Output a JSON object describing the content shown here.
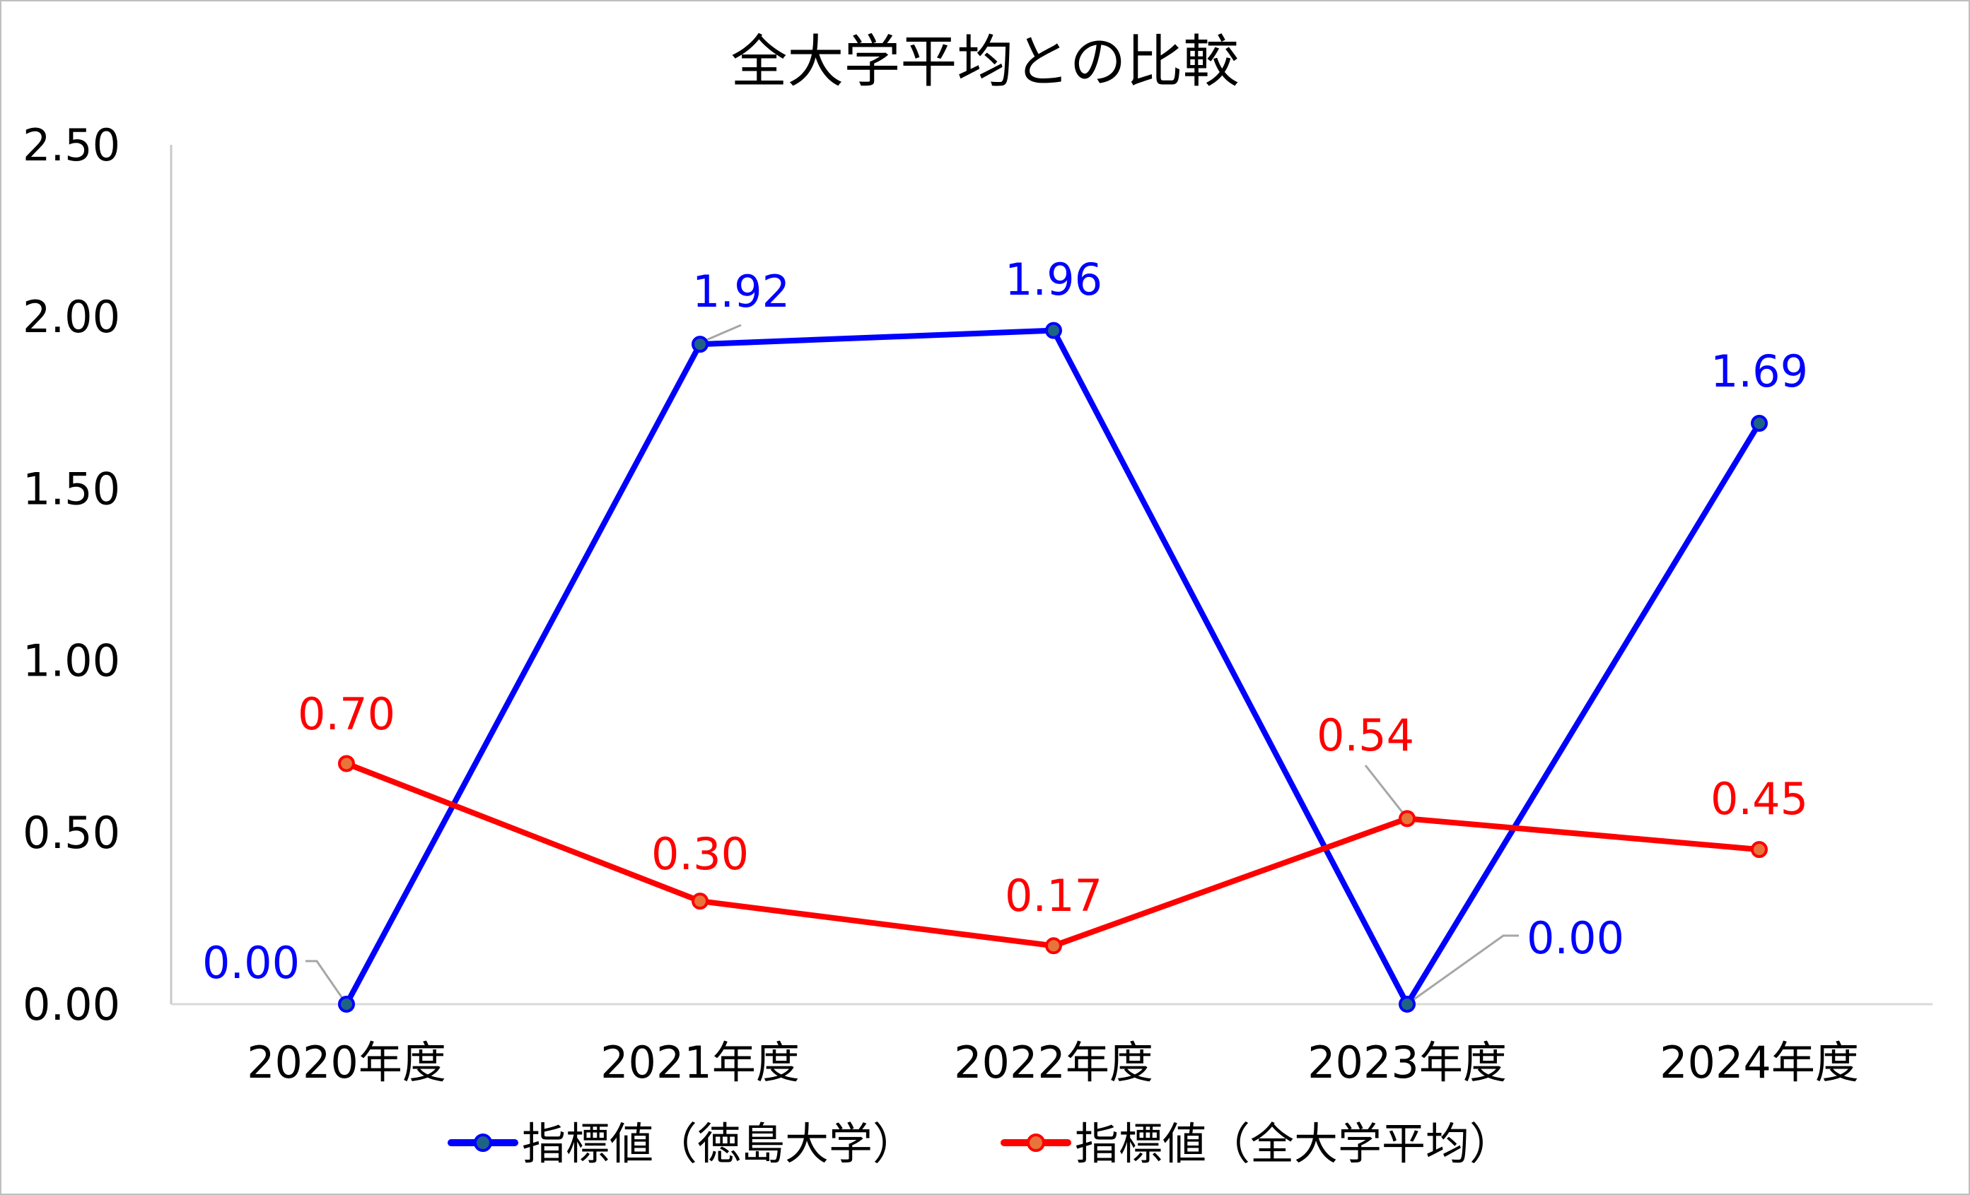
{
  "chart_data": {
    "type": "line",
    "title": "全大学平均との比較",
    "xlabel": "",
    "ylabel": "",
    "categories": [
      "2020年度",
      "2021年度",
      "2022年度",
      "2023年度",
      "2024年度"
    ],
    "series": [
      {
        "name": "指標値（徳島大学）",
        "values": [
          0.0,
          1.92,
          1.96,
          0.0,
          1.69
        ],
        "labels": [
          "0.00",
          "1.92",
          "1.96",
          "0.00",
          "1.69"
        ],
        "line_color": "#0000ff",
        "marker_fill": "#1f6384",
        "label_color": "#0000ff"
      },
      {
        "name": "指標値（全大学平均）",
        "values": [
          0.7,
          0.3,
          0.17,
          0.54,
          0.45
        ],
        "labels": [
          "0.70",
          "0.30",
          "0.17",
          "0.54",
          "0.45"
        ],
        "line_color": "#ff0000",
        "marker_fill": "#e8743b",
        "label_color": "#ff0000"
      }
    ],
    "ylim": [
      0,
      2.5
    ],
    "yticks": [
      "0.00",
      "0.50",
      "1.00",
      "1.50",
      "2.00",
      "2.50"
    ],
    "grid": false,
    "legend_position": "bottom"
  }
}
